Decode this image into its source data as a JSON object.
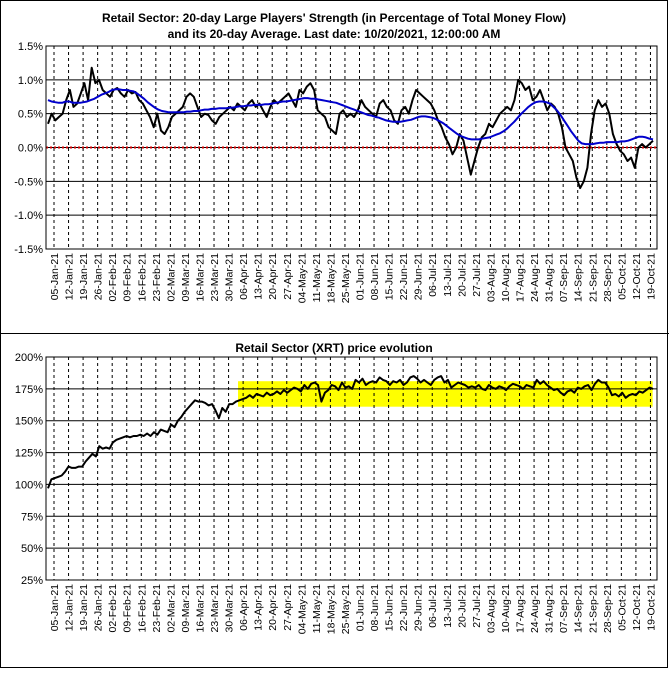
{
  "colors": {
    "strength": "#000000",
    "average": "#0000cc",
    "zero_line": "#cc0000",
    "price": "#000000",
    "highlight": "#ffff00"
  },
  "chart_data": [
    {
      "type": "line",
      "title_line1": "Retail Sector: 20-day Large Players' Strength (in Percentage of Total Money Flow)",
      "title_line2": "and its 20-day Average. Last date: 10/20/2021, 12:00:00 AM",
      "ylim": [
        -1.5,
        1.5
      ],
      "y_ticks": [
        1.5,
        1.0,
        0.5,
        0.0,
        -0.5,
        -1.0,
        -1.5
      ],
      "y_tick_labels": [
        "1.5%",
        "1.0%",
        "0.5%",
        "0.0%",
        "-0.5%",
        "-1.0%",
        "-1.5%"
      ],
      "x_tick_labels": [
        "05-Jan-21",
        "12-Jan-21",
        "19-Jan-21",
        "26-Jan-21",
        "02-Feb-21",
        "09-Feb-21",
        "16-Feb-21",
        "23-Feb-21",
        "02-Mar-21",
        "09-Mar-21",
        "16-Mar-21",
        "23-Mar-21",
        "30-Mar-21",
        "06-Apr-21",
        "13-Apr-21",
        "20-Apr-21",
        "27-Apr-21",
        "04-May-21",
        "11-May-21",
        "18-May-21",
        "25-May-21",
        "01-Jun-21",
        "08-Jun-21",
        "15-Jun-21",
        "22-Jun-21",
        "29-Jun-21",
        "06-Jul-21",
        "13-Jul-21",
        "20-Jul-21",
        "27-Jul-21",
        "03-Aug-21",
        "10-Aug-21",
        "17-Aug-21",
        "24-Aug-21",
        "31-Aug-21",
        "07-Sep-21",
        "14-Sep-21",
        "21-Sep-21",
        "28-Sep-21",
        "05-Oct-21",
        "12-Oct-21",
        "19-Oct-21"
      ],
      "grid": true,
      "series": [
        {
          "values": [
            0.35,
            0.5,
            0.4,
            0.45,
            0.5,
            0.7,
            0.85,
            0.6,
            0.65,
            0.8,
            0.95,
            0.7,
            1.18,
            0.95,
            1.0,
            0.85,
            0.8,
            0.75,
            0.85,
            0.88,
            0.8,
            0.75,
            0.85,
            0.8,
            0.82,
            0.7,
            0.65,
            0.55,
            0.45,
            0.3,
            0.5,
            0.25,
            0.2,
            0.3,
            0.45,
            0.5,
            0.55,
            0.6,
            0.75,
            0.8,
            0.75,
            0.6,
            0.45,
            0.5,
            0.48,
            0.4,
            0.35,
            0.45,
            0.5,
            0.55,
            0.6,
            0.55,
            0.65,
            0.6,
            0.55,
            0.65,
            0.7,
            0.6,
            0.65,
            0.55,
            0.45,
            0.6,
            0.7,
            0.65,
            0.7,
            0.75,
            0.8,
            0.7,
            0.6,
            0.85,
            0.8,
            0.9,
            0.95,
            0.85,
            0.55,
            0.5,
            0.45,
            0.3,
            0.25,
            0.2,
            0.5,
            0.55,
            0.45,
            0.5,
            0.45,
            0.55,
            0.7,
            0.6,
            0.55,
            0.5,
            0.45,
            0.65,
            0.7,
            0.6,
            0.55,
            0.4,
            0.35,
            0.55,
            0.6,
            0.5,
            0.7,
            0.85,
            0.8,
            0.75,
            0.7,
            0.65,
            0.55,
            0.4,
            0.3,
            0.15,
            0.05,
            -0.1,
            0.0,
            0.2,
            0.1,
            -0.15,
            -0.4,
            -0.2,
            0.0,
            0.15,
            0.2,
            0.35,
            0.3,
            0.4,
            0.5,
            0.55,
            0.6,
            0.55,
            0.7,
            1.0,
            0.95,
            0.85,
            0.9,
            0.7,
            0.75,
            0.85,
            0.7,
            0.55,
            0.65,
            0.6,
            0.5,
            0.3,
            0.0,
            -0.1,
            -0.2,
            -0.45,
            -0.6,
            -0.5,
            -0.3,
            0.2,
            0.55,
            0.7,
            0.6,
            0.65,
            0.5,
            0.2,
            0.05,
            -0.05,
            -0.1,
            -0.2,
            -0.15,
            -0.3,
            0.0,
            0.05,
            0.0,
            0.05,
            0.1
          ]
        },
        {
          "values": [
            0.7,
            0.68,
            0.67,
            0.66,
            0.66,
            0.68,
            0.68,
            0.66,
            0.66,
            0.66,
            0.67,
            0.68,
            0.7,
            0.72,
            0.75,
            0.78,
            0.8,
            0.82,
            0.85,
            0.86,
            0.86,
            0.85,
            0.85,
            0.84,
            0.83,
            0.8,
            0.76,
            0.72,
            0.67,
            0.63,
            0.59,
            0.56,
            0.54,
            0.53,
            0.52,
            0.52,
            0.52,
            0.52,
            0.52,
            0.53,
            0.53,
            0.54,
            0.54,
            0.55,
            0.56,
            0.56,
            0.57,
            0.57,
            0.58,
            0.58,
            0.58,
            0.59,
            0.59,
            0.6,
            0.61,
            0.61,
            0.62,
            0.62,
            0.63,
            0.63,
            0.63,
            0.64,
            0.64,
            0.65,
            0.66,
            0.67,
            0.68,
            0.68,
            0.69,
            0.7,
            0.71,
            0.72,
            0.73,
            0.73,
            0.72,
            0.72,
            0.71,
            0.7,
            0.69,
            0.68,
            0.67,
            0.66,
            0.64,
            0.62,
            0.6,
            0.58,
            0.56,
            0.54,
            0.52,
            0.5,
            0.48,
            0.47,
            0.45,
            0.44,
            0.42,
            0.4,
            0.39,
            0.38,
            0.38,
            0.38,
            0.39,
            0.4,
            0.41,
            0.43,
            0.45,
            0.46,
            0.46,
            0.45,
            0.44,
            0.42,
            0.39,
            0.36,
            0.32,
            0.28,
            0.24,
            0.2,
            0.17,
            0.15,
            0.13,
            0.12,
            0.12,
            0.12,
            0.13,
            0.14,
            0.15,
            0.17,
            0.19,
            0.21,
            0.24,
            0.28,
            0.33,
            0.38,
            0.44,
            0.5,
            0.55,
            0.6,
            0.64,
            0.67,
            0.68,
            0.68,
            0.67,
            0.65,
            0.6,
            0.55,
            0.48,
            0.4,
            0.32,
            0.24,
            0.17,
            0.1,
            0.06,
            0.05,
            0.05,
            0.05,
            0.06,
            0.07,
            0.07,
            0.08,
            0.08,
            0.08,
            0.08,
            0.09,
            0.09,
            0.1,
            0.12,
            0.14,
            0.16,
            0.16,
            0.15,
            0.13,
            0.12
          ]
        }
      ]
    },
    {
      "type": "line",
      "title": "Retail Sector (XRT) price evolution",
      "ylim": [
        25,
        200
      ],
      "y_ticks": [
        200,
        175,
        150,
        125,
        100,
        75,
        50,
        25
      ],
      "y_tick_labels": [
        "200%",
        "175%",
        "150%",
        "125%",
        "100%",
        "75%",
        "50%",
        "25%"
      ],
      "x_tick_labels": [
        "05-Jan-21",
        "12-Jan-21",
        "19-Jan-21",
        "26-Jan-21",
        "02-Feb-21",
        "09-Feb-21",
        "16-Feb-21",
        "23-Feb-21",
        "02-Mar-21",
        "09-Mar-21",
        "16-Mar-21",
        "23-Mar-21",
        "30-Mar-21",
        "06-Apr-21",
        "13-Apr-21",
        "20-Apr-21",
        "27-Apr-21",
        "04-May-21",
        "11-May-21",
        "18-May-21",
        "25-May-21",
        "01-Jun-21",
        "08-Jun-21",
        "15-Jun-21",
        "22-Jun-21",
        "29-Jun-21",
        "06-Jul-21",
        "13-Jul-21",
        "20-Jul-21",
        "27-Jul-21",
        "03-Aug-21",
        "10-Aug-21",
        "17-Aug-21",
        "24-Aug-21",
        "31-Aug-21",
        "07-Sep-21",
        "14-Sep-21",
        "21-Sep-21",
        "28-Sep-21",
        "05-Oct-21",
        "12-Oct-21",
        "19-Oct-21"
      ],
      "grid": true,
      "highlight_band": {
        "y_from": 161,
        "y_to": 181,
        "from_label": "06-Apr-21",
        "to_label": "19-Oct-21"
      },
      "series": [
        {
          "values": [
            97,
            104,
            105,
            106,
            107,
            110,
            114,
            113,
            113,
            114,
            114,
            118,
            121,
            124,
            122,
            130,
            128,
            129,
            128,
            133,
            135,
            136,
            137,
            138,
            137,
            138,
            138,
            139,
            138,
            140,
            138,
            141,
            139,
            143,
            142,
            141,
            147,
            145,
            150,
            153,
            157,
            160,
            163,
            166,
            165,
            165,
            164,
            162,
            163,
            158,
            152,
            160,
            157,
            163,
            163,
            165,
            166,
            167,
            168,
            170,
            168,
            171,
            170,
            169,
            172,
            170,
            171,
            173,
            171,
            174,
            172,
            174,
            176,
            175,
            173,
            178,
            175,
            179,
            180,
            178,
            165,
            172,
            174,
            178,
            177,
            174,
            180,
            176,
            177,
            175,
            182,
            180,
            183,
            178,
            180,
            181,
            180,
            184,
            182,
            181,
            178,
            181,
            180,
            182,
            178,
            180,
            184,
            185,
            183,
            180,
            182,
            180,
            178,
            182,
            184,
            185,
            180,
            182,
            176,
            178,
            180,
            179,
            178,
            176,
            177,
            176,
            178,
            175,
            174,
            178,
            176,
            175,
            177,
            176,
            174,
            177,
            179,
            178,
            177,
            175,
            178,
            177,
            176,
            182,
            179,
            181,
            178,
            176,
            174,
            175,
            172,
            170,
            173,
            174,
            172,
            176,
            175,
            177,
            178,
            174,
            179,
            182,
            180,
            180,
            176,
            170,
            171,
            169,
            172,
            168,
            170,
            171,
            170,
            173,
            172,
            174,
            176,
            175
          ]
        }
      ]
    }
  ]
}
